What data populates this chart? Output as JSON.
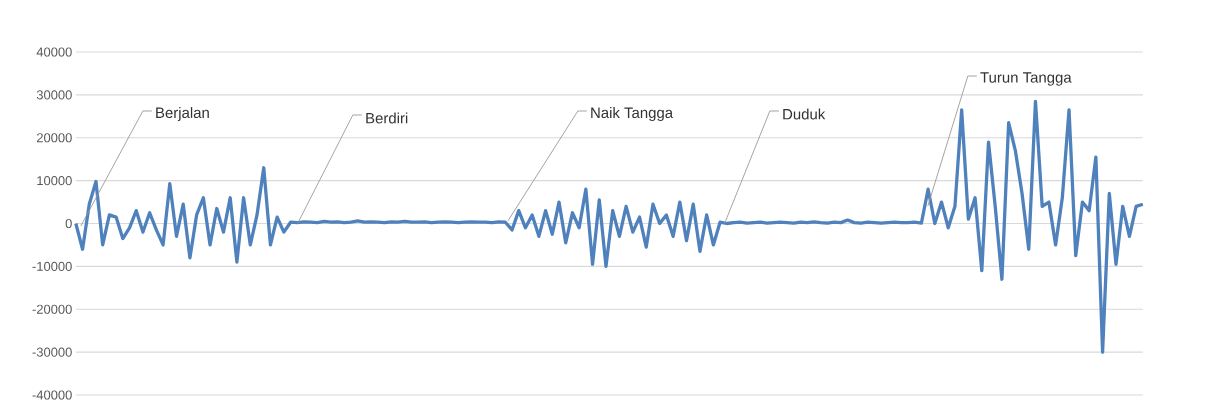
{
  "chart_data": {
    "type": "line",
    "categories": [
      null,
      null,
      null,
      null,
      null,
      null,
      null,
      null,
      null,
      null,
      null,
      null,
      null,
      null,
      null,
      null,
      null,
      null,
      null,
      null,
      null,
      null,
      null,
      null,
      null,
      null,
      null,
      null,
      null,
      null,
      null,
      null,
      null,
      null,
      null,
      null,
      null,
      null,
      null,
      null,
      null,
      null,
      null,
      null,
      null,
      null,
      null,
      null,
      null,
      null,
      null,
      null,
      null,
      null,
      null,
      null,
      null,
      null,
      null,
      null,
      null,
      null,
      null,
      null,
      null,
      null,
      null,
      null,
      null,
      null,
      null,
      null,
      null,
      null,
      null,
      null,
      null,
      null,
      null,
      null,
      null,
      null,
      null,
      null,
      null,
      null,
      null,
      null,
      null,
      null,
      null,
      null,
      null,
      null,
      null,
      null,
      null,
      null,
      null,
      null,
      null,
      null,
      null,
      null,
      null,
      null,
      null,
      null,
      null,
      null,
      null,
      null,
      null,
      null,
      null,
      null,
      null,
      null,
      null,
      null,
      null,
      null,
      null,
      null,
      null,
      null,
      null,
      null,
      null,
      null,
      null,
      null,
      null,
      null,
      null,
      null,
      null,
      null,
      null,
      null,
      null,
      null,
      null,
      null,
      null,
      null,
      null,
      null,
      null,
      null,
      null,
      null,
      null,
      null,
      null,
      null,
      null,
      null,
      null,
      null
    ],
    "series": [
      {
        "color": "#4f81bd",
        "values": [
          0,
          -6000,
          4500,
          9800,
          -5000,
          2000,
          1500,
          -3500,
          -1000,
          3000,
          -2000,
          2500,
          -1500,
          -5000,
          9300,
          -3000,
          4500,
          -8000,
          2000,
          6000,
          -5000,
          3500,
          -2000,
          6000,
          -9000,
          6000,
          -5000,
          2000,
          13000,
          -5000,
          1500,
          -2000,
          300,
          200,
          400,
          300,
          200,
          500,
          300,
          400,
          200,
          300,
          600,
          300,
          400,
          300,
          200,
          400,
          300,
          500,
          300,
          300,
          400,
          200,
          300,
          400,
          300,
          200,
          300,
          400,
          300,
          300,
          200,
          400,
          300,
          -1500,
          3000,
          -1000,
          2000,
          -3000,
          3000,
          -2500,
          5000,
          -4500,
          2500,
          -1000,
          8000,
          -9500,
          5500,
          -10000,
          3000,
          -3000,
          4000,
          -2000,
          1500,
          -5500,
          4500,
          0,
          2000,
          -3000,
          5000,
          -4000,
          4500,
          -6500,
          2000,
          -5000,
          300,
          0,
          200,
          300,
          100,
          200,
          300,
          100,
          200,
          300,
          200,
          100,
          300,
          200,
          400,
          200,
          100,
          300,
          200,
          800,
          200,
          100,
          300,
          200,
          100,
          200,
          300,
          200,
          200,
          300,
          100,
          8000,
          0,
          5000,
          -1000,
          4000,
          26500,
          1000,
          6000,
          -11000,
          19000,
          4000,
          -13000,
          23500,
          17000,
          7000,
          -6000,
          28500,
          4000,
          5000,
          -5000,
          6000,
          26500,
          -7500,
          5000,
          3000,
          15500,
          -30000,
          7000,
          -9500,
          4000,
          -3000,
          4000,
          4500
        ]
      }
    ],
    "ylim": [
      -40000,
      40000
    ],
    "yticks": [
      -40000,
      -30000,
      -20000,
      -10000,
      0,
      10000,
      20000,
      30000,
      40000
    ],
    "grid": "y",
    "line_style": "solid",
    "annotations": [
      "Berjalan",
      "Berdiri",
      "Naik Tangga",
      "Duduk",
      "Turun Tangga"
    ]
  }
}
